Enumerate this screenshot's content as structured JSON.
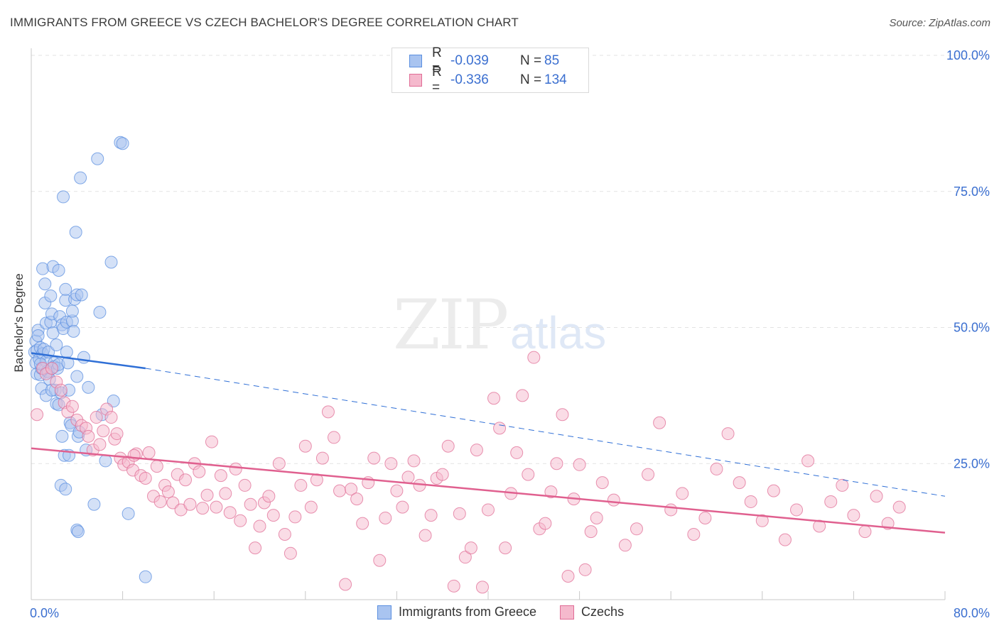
{
  "title": "IMMIGRANTS FROM GREECE VS CZECH BACHELOR'S DEGREE CORRELATION CHART",
  "source": "Source: ZipAtlas.com",
  "watermark": {
    "zip": "ZIP",
    "atlas": "atlas"
  },
  "legend": {
    "rows": [
      {
        "r_label": "R =",
        "r_value": "-0.039",
        "n_label": "N =",
        "n_value": "85"
      },
      {
        "r_label": "R =",
        "r_value": "-0.336",
        "n_label": "N =",
        "n_value": "134"
      }
    ]
  },
  "chart_data": {
    "type": "scatter",
    "title": "IMMIGRANTS FROM GREECE VS CZECH BACHELOR'S DEGREE CORRELATION CHART",
    "xlabel": "",
    "ylabel": "Bachelor's Degree",
    "xlim": [
      0,
      80
    ],
    "ylim": [
      0,
      100
    ],
    "x_tick_labels": [
      "0.0%",
      "80.0%"
    ],
    "y_tick_labels": [
      "25.0%",
      "50.0%",
      "75.0%",
      "100.0%"
    ],
    "y_ticks": [
      25,
      50,
      75,
      100
    ],
    "grid": true,
    "legend_position": "bottom",
    "series": [
      {
        "name": "Immigrants from Greece",
        "color": "#5b8fe0",
        "fill": "#a9c4f0",
        "R": -0.039,
        "N": 85,
        "trend": {
          "x": [
            0,
            10
          ],
          "y": [
            45.3,
            42.5
          ],
          "dashed_to": [
            80,
            19.0
          ]
        },
        "points": [
          [
            0.3,
            45.5
          ],
          [
            0.4,
            47.5
          ],
          [
            0.4,
            43.5
          ],
          [
            0.5,
            41.5
          ],
          [
            0.5,
            45.8
          ],
          [
            0.6,
            49.5
          ],
          [
            0.6,
            48.5
          ],
          [
            0.7,
            44.2
          ],
          [
            0.8,
            46.3
          ],
          [
            0.8,
            41.3
          ],
          [
            0.9,
            42.5
          ],
          [
            0.9,
            38.8
          ],
          [
            1.0,
            60.8
          ],
          [
            1.0,
            45.2
          ],
          [
            1.1,
            46.0
          ],
          [
            1.2,
            54.5
          ],
          [
            1.2,
            58.0
          ],
          [
            1.3,
            50.8
          ],
          [
            1.3,
            43.8
          ],
          [
            1.3,
            37.5
          ],
          [
            1.4,
            42.0
          ],
          [
            1.5,
            45.5
          ],
          [
            1.5,
            41.8
          ],
          [
            1.6,
            40.5
          ],
          [
            1.7,
            51.0
          ],
          [
            1.7,
            55.8
          ],
          [
            1.8,
            52.5
          ],
          [
            1.9,
            61.2
          ],
          [
            1.9,
            49.0
          ],
          [
            2.0,
            43.5
          ],
          [
            2.0,
            42.8
          ],
          [
            2.1,
            38.5
          ],
          [
            2.2,
            36.0
          ],
          [
            2.2,
            46.8
          ],
          [
            2.3,
            42.5
          ],
          [
            2.4,
            60.5
          ],
          [
            2.4,
            43.2
          ],
          [
            2.5,
            52.0
          ],
          [
            2.6,
            38.0
          ],
          [
            2.7,
            50.5
          ],
          [
            2.8,
            49.8
          ],
          [
            2.8,
            74.0
          ],
          [
            2.9,
            26.5
          ],
          [
            3.0,
            55.0
          ],
          [
            3.0,
            57.0
          ],
          [
            3.1,
            45.5
          ],
          [
            3.1,
            51.0
          ],
          [
            3.2,
            43.5
          ],
          [
            3.3,
            38.5
          ],
          [
            3.4,
            32.5
          ],
          [
            3.5,
            32.0
          ],
          [
            3.6,
            51.2
          ],
          [
            3.6,
            53.0
          ],
          [
            3.7,
            49.3
          ],
          [
            3.8,
            55.2
          ],
          [
            3.9,
            67.5
          ],
          [
            4.0,
            56.0
          ],
          [
            4.0,
            41.0
          ],
          [
            4.1,
            30.0
          ],
          [
            4.2,
            30.8
          ],
          [
            4.3,
            77.5
          ],
          [
            4.4,
            56.0
          ],
          [
            4.6,
            44.5
          ],
          [
            4.8,
            27.5
          ],
          [
            5.0,
            39.0
          ],
          [
            5.5,
            17.5
          ],
          [
            5.8,
            81.0
          ],
          [
            6.0,
            52.8
          ],
          [
            6.2,
            34.0
          ],
          [
            6.5,
            25.5
          ],
          [
            7.0,
            62.0
          ],
          [
            7.2,
            36.5
          ],
          [
            7.8,
            84.0
          ],
          [
            8.0,
            83.8
          ],
          [
            8.5,
            15.8
          ],
          [
            10.0,
            4.2
          ],
          [
            2.6,
            21.0
          ],
          [
            3.0,
            20.3
          ],
          [
            3.3,
            26.5
          ],
          [
            4.0,
            12.8
          ],
          [
            4.1,
            12.5
          ],
          [
            2.7,
            30.0
          ],
          [
            2.4,
            35.8
          ],
          [
            1.8,
            38.5
          ],
          [
            0.8,
            43.3
          ]
        ]
      },
      {
        "name": "Czechs",
        "color": "#e06d96",
        "fill": "#f5b9cd",
        "R": -0.336,
        "N": 134,
        "trend": {
          "x": [
            0,
            80
          ],
          "y": [
            27.8,
            12.3
          ]
        },
        "points": [
          [
            0.5,
            34.0
          ],
          [
            1.0,
            42.5
          ],
          [
            1.3,
            41.5
          ],
          [
            1.8,
            42.5
          ],
          [
            2.2,
            40.0
          ],
          [
            2.6,
            38.5
          ],
          [
            2.9,
            36.2
          ],
          [
            3.2,
            34.5
          ],
          [
            3.6,
            35.5
          ],
          [
            4.0,
            33.0
          ],
          [
            4.4,
            32.0
          ],
          [
            4.8,
            31.5
          ],
          [
            5.0,
            30.0
          ],
          [
            5.4,
            27.5
          ],
          [
            5.7,
            33.5
          ],
          [
            6.0,
            28.5
          ],
          [
            6.3,
            31.0
          ],
          [
            6.6,
            35.0
          ],
          [
            7.0,
            33.5
          ],
          [
            7.3,
            29.5
          ],
          [
            7.8,
            26.0
          ],
          [
            8.1,
            24.8
          ],
          [
            8.5,
            25.3
          ],
          [
            8.9,
            23.8
          ],
          [
            9.2,
            26.8
          ],
          [
            9.6,
            22.8
          ],
          [
            10.0,
            22.3
          ],
          [
            10.3,
            27.0
          ],
          [
            10.7,
            19.0
          ],
          [
            11.0,
            24.5
          ],
          [
            11.3,
            18.0
          ],
          [
            11.7,
            21.0
          ],
          [
            12.0,
            19.8
          ],
          [
            12.4,
            17.8
          ],
          [
            12.8,
            23.0
          ],
          [
            13.1,
            16.5
          ],
          [
            13.5,
            22.0
          ],
          [
            13.9,
            17.5
          ],
          [
            14.3,
            25.0
          ],
          [
            14.7,
            23.5
          ],
          [
            15.0,
            16.8
          ],
          [
            15.4,
            19.2
          ],
          [
            15.8,
            29.0
          ],
          [
            16.2,
            17.0
          ],
          [
            16.6,
            22.8
          ],
          [
            17.0,
            19.5
          ],
          [
            17.4,
            16.0
          ],
          [
            17.9,
            24.0
          ],
          [
            18.3,
            14.5
          ],
          [
            18.7,
            21.0
          ],
          [
            19.2,
            17.5
          ],
          [
            19.6,
            9.5
          ],
          [
            20.0,
            13.5
          ],
          [
            20.4,
            17.8
          ],
          [
            20.8,
            19.0
          ],
          [
            21.2,
            15.5
          ],
          [
            21.7,
            25.0
          ],
          [
            22.2,
            12.0
          ],
          [
            22.7,
            8.5
          ],
          [
            23.1,
            15.2
          ],
          [
            23.6,
            21.0
          ],
          [
            24.0,
            28.2
          ],
          [
            24.5,
            17.0
          ],
          [
            25.0,
            22.0
          ],
          [
            25.5,
            26.0
          ],
          [
            26.0,
            34.5
          ],
          [
            26.5,
            29.8
          ],
          [
            27.0,
            20.0
          ],
          [
            27.5,
            2.8
          ],
          [
            28.0,
            20.3
          ],
          [
            28.5,
            18.5
          ],
          [
            29.0,
            14.0
          ],
          [
            29.5,
            21.5
          ],
          [
            30.0,
            26.0
          ],
          [
            30.5,
            7.2
          ],
          [
            31.0,
            15.0
          ],
          [
            31.5,
            25.0
          ],
          [
            32.0,
            20.0
          ],
          [
            32.5,
            17.0
          ],
          [
            33.0,
            22.5
          ],
          [
            33.5,
            25.5
          ],
          [
            34.0,
            21.0
          ],
          [
            34.5,
            11.8
          ],
          [
            35.0,
            15.5
          ],
          [
            35.5,
            22.3
          ],
          [
            36.0,
            23.0
          ],
          [
            36.5,
            28.2
          ],
          [
            37.0,
            2.5
          ],
          [
            37.5,
            15.8
          ],
          [
            38.0,
            7.8
          ],
          [
            38.5,
            9.5
          ],
          [
            39.0,
            27.5
          ],
          [
            39.5,
            2.3
          ],
          [
            40.0,
            16.5
          ],
          [
            40.5,
            37.0
          ],
          [
            41.0,
            31.5
          ],
          [
            41.5,
            9.5
          ],
          [
            42.0,
            19.5
          ],
          [
            42.5,
            27.0
          ],
          [
            43.0,
            37.5
          ],
          [
            43.5,
            23.0
          ],
          [
            44.0,
            44.5
          ],
          [
            44.5,
            13.0
          ],
          [
            45.0,
            14.0
          ],
          [
            45.5,
            19.8
          ],
          [
            46.0,
            25.0
          ],
          [
            46.5,
            34.0
          ],
          [
            47.0,
            4.3
          ],
          [
            47.5,
            18.5
          ],
          [
            48.0,
            24.8
          ],
          [
            48.5,
            5.5
          ],
          [
            49.0,
            12.5
          ],
          [
            49.5,
            15.0
          ],
          [
            50.0,
            21.5
          ],
          [
            51.0,
            18.3
          ],
          [
            52.0,
            10.0
          ],
          [
            53.0,
            13.0
          ],
          [
            54.0,
            23.0
          ],
          [
            55.0,
            32.5
          ],
          [
            56.0,
            16.5
          ],
          [
            57.0,
            19.5
          ],
          [
            58.0,
            12.0
          ],
          [
            59.0,
            15.0
          ],
          [
            60.0,
            24.0
          ],
          [
            61.0,
            30.5
          ],
          [
            62.0,
            21.5
          ],
          [
            63.0,
            18.0
          ],
          [
            64.0,
            14.5
          ],
          [
            65.0,
            20.0
          ],
          [
            66.0,
            11.0
          ],
          [
            67.0,
            16.5
          ],
          [
            68.0,
            25.5
          ],
          [
            69.0,
            13.5
          ],
          [
            70.0,
            18.0
          ],
          [
            71.0,
            21.0
          ],
          [
            72.0,
            15.5
          ],
          [
            73.0,
            12.5
          ],
          [
            74.0,
            19.0
          ],
          [
            75.0,
            14.0
          ],
          [
            76.0,
            17.0
          ],
          [
            7.5,
            30.5
          ],
          [
            9.0,
            26.5
          ]
        ]
      }
    ]
  }
}
